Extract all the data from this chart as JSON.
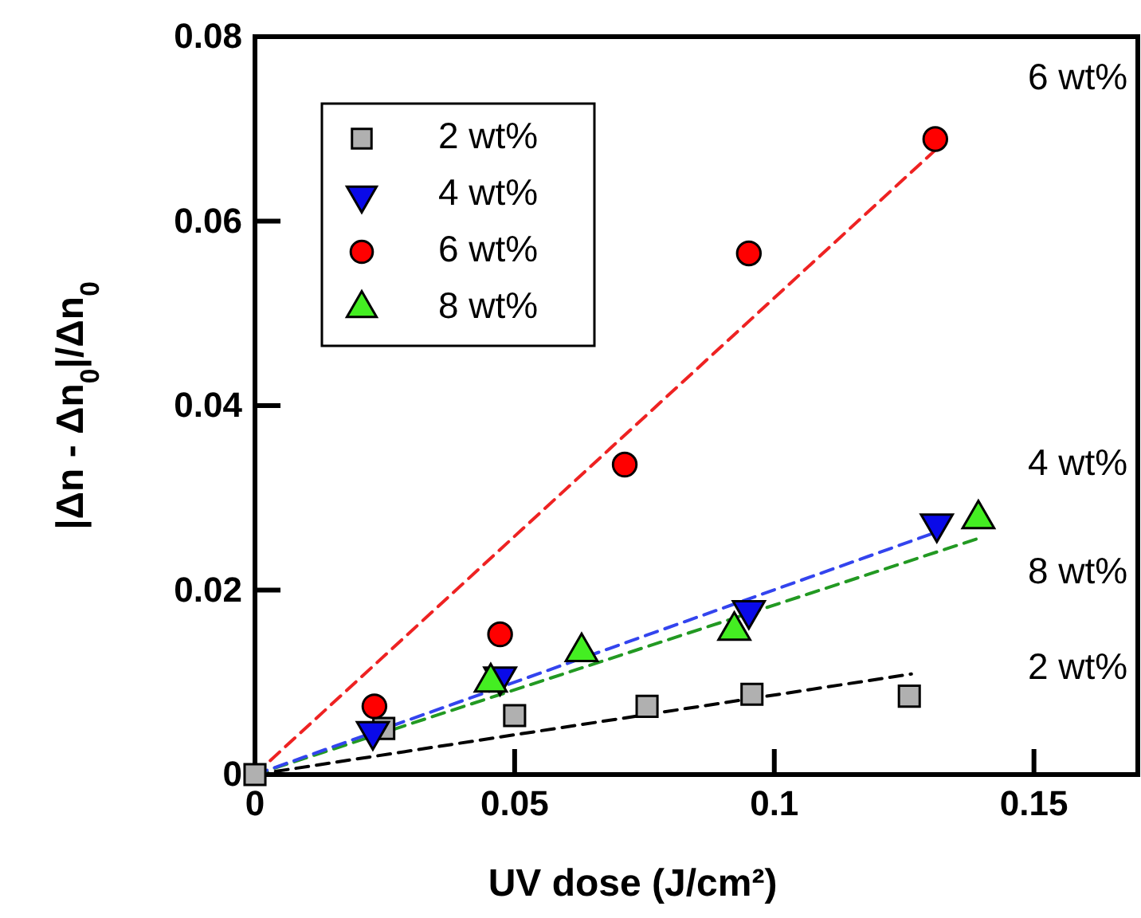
{
  "chart_data": {
    "type": "scatter",
    "xlabel": "UV dose (J/cm²)",
    "ylabel": "|Δn - Δn$_{0}$|/Δn$_{0}$",
    "xlim": [
      0,
      0.17
    ],
    "ylim": [
      0,
      0.08
    ],
    "xticks": [
      0,
      0.05,
      0.1,
      0.15
    ],
    "yticks": [
      0,
      0.02,
      0.04,
      0.06,
      0.08
    ],
    "grid": false,
    "legend": "top left",
    "series": [
      {
        "type": "line",
        "color": "#000000",
        "line_style": "dashed",
        "marker": "none",
        "x": [
          0,
          0.1264
        ],
        "values": [
          0,
          0.0109
        ]
      },
      {
        "type": "line",
        "color": "#229922",
        "line_style": "dashed",
        "marker": "none",
        "x": [
          0,
          0.1393
        ],
        "values": [
          0,
          0.0256
        ]
      },
      {
        "type": "line",
        "color": "#3344ee",
        "line_style": "dashed",
        "marker": "none",
        "x": [
          0,
          0.1313
        ],
        "values": [
          0,
          0.0263
        ]
      },
      {
        "type": "line",
        "color": "#ee2222",
        "line_style": "dashed",
        "marker": "none",
        "x": [
          0,
          0.131
        ],
        "values": [
          0,
          0.0677
        ]
      },
      {
        "name": "2 wt%",
        "color": "#b0b0b0",
        "marker": "square",
        "x": [
          0,
          0.0248,
          0.05,
          0.0755,
          0.0957,
          0.126
        ],
        "values": [
          0,
          0.005,
          0.0064,
          0.0074,
          0.0087,
          0.0085
        ]
      },
      {
        "name": "4 wt%",
        "color": "#0a0ae8",
        "marker": "triangle-down",
        "x": [
          0.0227,
          0.0472,
          0.0951,
          0.1313
        ],
        "values": [
          0.0047,
          0.0106,
          0.0178,
          0.0272
        ]
      },
      {
        "name": "6 wt%",
        "color": "#ff0000",
        "marker": "circle",
        "x": [
          0.023,
          0.0472,
          0.0712,
          0.0951,
          0.131
        ],
        "values": [
          0.0074,
          0.0152,
          0.0336,
          0.0565,
          0.0689
        ]
      },
      {
        "name": "8 wt%",
        "color": "#44ee22",
        "marker": "triangle",
        "x": [
          0.0454,
          0.0629,
          0.0923,
          0.1393
        ],
        "values": [
          0.01,
          0.0133,
          0.0156,
          0.0277
        ]
      }
    ],
    "annotations": [
      "6 wt%",
      "4 wt%",
      "8 wt%",
      "2 wt%"
    ]
  }
}
